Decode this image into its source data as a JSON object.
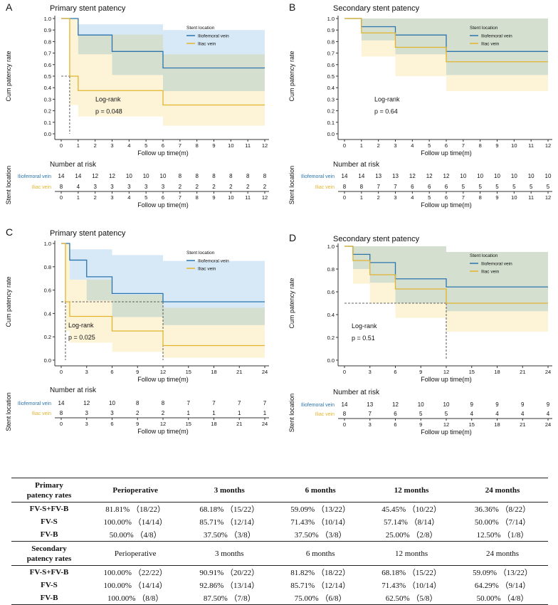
{
  "colors": {
    "iliofemoral": "#2b74ad",
    "iliac": "#e2b42d",
    "iliofemoral_band": "#d3e7f5",
    "iliac_band": "#fdf3d4",
    "overlap_band": "#e2e6d6",
    "axis": "#333333"
  },
  "chart_data": [
    {
      "id": "A",
      "type": "line",
      "step": true,
      "panel_letter": "A",
      "title": "Primary stent patency",
      "ylabel": "Cum patency rate",
      "xlabel": "Follow up time(m)",
      "xlim": [
        0,
        12
      ],
      "ylim": [
        0,
        1
      ],
      "x_ticks": [
        "0",
        "1",
        "2",
        "3",
        "4",
        "5",
        "6",
        "7",
        "8",
        "9",
        "10",
        "11",
        "12"
      ],
      "y_ticks": [
        "0.0",
        "0.1",
        "0.2",
        "0.3",
        "0.4",
        "0.5",
        "0.6",
        "0.7",
        "0.8",
        "0.9",
        "1.0"
      ],
      "y_tick_values": [
        0,
        0.1,
        0.2,
        0.3,
        0.4,
        0.5,
        0.6,
        0.7,
        0.8,
        0.9,
        1.0
      ],
      "legend": {
        "title": "Stent location",
        "placement": "top-right",
        "entries": [
          "Iliofemoral vein",
          "Iliac vein"
        ]
      },
      "annotation": {
        "lines": [
          "Log-rank",
          "p = 0.048"
        ],
        "placement": "center-left"
      },
      "median_lines": [
        {
          "x": 0.5,
          "y": 0.5
        }
      ],
      "series": [
        {
          "name": "Iliofemoral vein",
          "x": [
            0,
            1,
            3,
            6,
            12
          ],
          "y": [
            1.0,
            0.857,
            0.714,
            0.571,
            0.571
          ],
          "ci_lower": [
            1.0,
            0.69,
            0.51,
            0.37,
            0.37
          ],
          "ci_upper": [
            1.0,
            0.95,
            0.95,
            0.9,
            0.9
          ]
        },
        {
          "name": "Iliac vein",
          "x": [
            0,
            0.5,
            1,
            6,
            12
          ],
          "y": [
            1.0,
            0.5,
            0.375,
            0.25,
            0.25
          ],
          "ci_lower": [
            1.0,
            0.25,
            0.15,
            0.07,
            0.07
          ],
          "ci_upper": [
            1.0,
            1.0,
            0.86,
            0.69,
            0.69
          ]
        }
      ],
      "risk_table": {
        "title": "Number at risk",
        "ylabel": "Stent location",
        "xlabel": "Follow up time(m)",
        "times": [
          "0",
          "1",
          "2",
          "3",
          "4",
          "5",
          "6",
          "7",
          "8",
          "9",
          "10",
          "11",
          "12"
        ],
        "rows": [
          {
            "label": "Iliofemoral vein",
            "values": [
              "14",
              "14",
              "12",
              "12",
              "10",
              "10",
              "10",
              "8",
              "8",
              "8",
              "8",
              "8",
              "8"
            ]
          },
          {
            "label": "Iliac vein",
            "values": [
              "8",
              "4",
              "3",
              "3",
              "3",
              "3",
              "3",
              "2",
              "2",
              "2",
              "2",
              "2",
              "2"
            ]
          }
        ]
      }
    },
    {
      "id": "B",
      "type": "line",
      "step": true,
      "panel_letter": "B",
      "title": "Secondary stent patency",
      "ylabel": "Cum patency rate",
      "xlabel": "Follow up time(m)",
      "xlim": [
        0,
        12
      ],
      "ylim": [
        0,
        1
      ],
      "x_ticks": [
        "0",
        "1",
        "2",
        "3",
        "4",
        "5",
        "6",
        "7",
        "8",
        "9",
        "10",
        "11",
        "12"
      ],
      "y_ticks": [
        "0.0",
        "0.1",
        "0.2",
        "0.3",
        "0.4",
        "0.5",
        "0.6",
        "0.7",
        "0.8",
        "0.9",
        "1.0"
      ],
      "y_tick_values": [
        0,
        0.1,
        0.2,
        0.3,
        0.4,
        0.5,
        0.6,
        0.7,
        0.8,
        0.9,
        1.0
      ],
      "legend": {
        "title": "Stent location",
        "placement": "top-right",
        "entries": [
          "Iliofemoral vein",
          "Iliac vein"
        ]
      },
      "annotation": {
        "lines": [
          "Log-rank",
          "p = 0.64"
        ],
        "placement": "center-left"
      },
      "median_lines": [],
      "series": [
        {
          "name": "Iliofemoral vein",
          "x": [
            0,
            1,
            3,
            6,
            12
          ],
          "y": [
            1.0,
            0.929,
            0.857,
            0.714,
            0.714
          ],
          "ci_lower": [
            1.0,
            0.81,
            0.69,
            0.51,
            0.51
          ],
          "ci_upper": [
            1.0,
            1.0,
            1.0,
            1.0,
            1.0
          ]
        },
        {
          "name": "Iliac vein",
          "x": [
            0,
            1,
            3,
            6,
            12
          ],
          "y": [
            1.0,
            0.875,
            0.75,
            0.625,
            0.625
          ],
          "ci_lower": [
            1.0,
            0.67,
            0.5,
            0.37,
            0.37
          ],
          "ci_upper": [
            1.0,
            1.0,
            1.0,
            1.0,
            1.0
          ]
        }
      ],
      "risk_table": {
        "title": "Number at risk",
        "ylabel": "Stent location",
        "xlabel": "Follow up time(m)",
        "times": [
          "0",
          "1",
          "2",
          "3",
          "4",
          "5",
          "6",
          "7",
          "8",
          "9",
          "10",
          "11",
          "12"
        ],
        "rows": [
          {
            "label": "Iliofemoral vein",
            "values": [
              "14",
              "14",
              "13",
              "13",
              "12",
              "12",
              "12",
              "10",
              "10",
              "10",
              "10",
              "10",
              "10"
            ]
          },
          {
            "label": "Iliac vein",
            "values": [
              "8",
              "8",
              "7",
              "7",
              "6",
              "6",
              "6",
              "5",
              "5",
              "5",
              "5",
              "5",
              "5"
            ]
          }
        ]
      }
    },
    {
      "id": "C",
      "type": "line",
      "step": true,
      "panel_letter": "C",
      "title": "Primary stent patency",
      "ylabel": "Cum patency rate",
      "xlabel": "Follow up time(m)",
      "xlim": [
        0,
        24
      ],
      "ylim": [
        0,
        1
      ],
      "x_ticks": [
        "0",
        "3",
        "6",
        "9",
        "12",
        "15",
        "18",
        "21",
        "24"
      ],
      "y_ticks": [
        "0.0",
        "0.2",
        "0.4",
        "0.6",
        "0.8",
        "1.0"
      ],
      "y_tick_values": [
        0,
        0.2,
        0.4,
        0.6,
        0.8,
        1.0
      ],
      "legend": {
        "title": "Stent location",
        "placement": "top-right",
        "entries": [
          "Iliofemoral vein",
          "Iliac vein"
        ]
      },
      "annotation": {
        "lines": [
          "Log-rank",
          "p = 0.025"
        ],
        "placement": "center-left"
      },
      "median_lines": [
        {
          "x": 0.5,
          "y": 0.5
        },
        {
          "x": 12,
          "y": 0.5
        }
      ],
      "series": [
        {
          "name": "Iliofemoral vein",
          "x": [
            0,
            1,
            3,
            6,
            12,
            24
          ],
          "y": [
            1.0,
            0.857,
            0.714,
            0.571,
            0.5,
            0.5
          ],
          "ci_lower": [
            1.0,
            0.69,
            0.51,
            0.37,
            0.3,
            0.3
          ],
          "ci_upper": [
            1.0,
            0.95,
            0.95,
            0.9,
            0.85,
            0.85
          ]
        },
        {
          "name": "Iliac vein",
          "x": [
            0,
            0.5,
            1,
            6,
            12,
            24
          ],
          "y": [
            1.0,
            0.5,
            0.375,
            0.25,
            0.125,
            0.125
          ],
          "ci_lower": [
            1.0,
            0.25,
            0.15,
            0.07,
            0.02,
            0.02
          ],
          "ci_upper": [
            1.0,
            1.0,
            0.69,
            0.56,
            0.45,
            0.45
          ]
        }
      ],
      "risk_table": {
        "title": "Number at risk",
        "ylabel": "Stent location",
        "xlabel": "Follow up time(m)",
        "times": [
          "0",
          "3",
          "6",
          "9",
          "12",
          "15",
          "18",
          "21",
          "24"
        ],
        "rows": [
          {
            "label": "Iliofemoral vein",
            "values": [
              "14",
              "12",
              "10",
              "8",
              "8",
              "7",
              "7",
              "7",
              "7"
            ]
          },
          {
            "label": "Iliac vein",
            "values": [
              "8",
              "3",
              "3",
              "2",
              "2",
              "1",
              "1",
              "1",
              "1"
            ]
          }
        ]
      }
    },
    {
      "id": "D",
      "type": "line",
      "step": true,
      "panel_letter": "D",
      "title": "Secondary stent patency",
      "ylabel": "Cum patency rate",
      "xlabel": "Follow up time(m)",
      "xlim": [
        0,
        24
      ],
      "ylim": [
        0,
        1
      ],
      "x_ticks": [
        "0",
        "3",
        "6",
        "9",
        "12",
        "15",
        "18",
        "21",
        "24"
      ],
      "y_ticks": [
        "0.0",
        "0.2",
        "0.4",
        "0.6",
        "0.8",
        "1.0"
      ],
      "y_tick_values": [
        0,
        0.2,
        0.4,
        0.6,
        0.8,
        1.0
      ],
      "legend": {
        "title": "Stent location",
        "placement": "top-right",
        "entries": [
          "Iliofemoral vein",
          "Iliac vein"
        ]
      },
      "annotation": {
        "lines": [
          "Log-rank",
          "p = 0.51"
        ],
        "placement": "center-left"
      },
      "median_lines": [
        {
          "x": 12,
          "y": 0.5
        }
      ],
      "series": [
        {
          "name": "Iliofemoral vein",
          "x": [
            0,
            1,
            3,
            6,
            12,
            24
          ],
          "y": [
            1.0,
            0.929,
            0.857,
            0.714,
            0.643,
            0.643
          ],
          "ci_lower": [
            1.0,
            0.8,
            0.68,
            0.5,
            0.43,
            0.43
          ],
          "ci_upper": [
            1.0,
            1.0,
            1.0,
            1.0,
            0.95,
            0.95
          ]
        },
        {
          "name": "Iliac vein",
          "x": [
            0,
            1,
            3,
            6,
            12,
            24
          ],
          "y": [
            1.0,
            0.875,
            0.75,
            0.625,
            0.5,
            0.5
          ],
          "ci_lower": [
            1.0,
            0.67,
            0.5,
            0.37,
            0.25,
            0.25
          ],
          "ci_upper": [
            1.0,
            1.0,
            1.0,
            1.0,
            0.95,
            0.95
          ]
        }
      ],
      "risk_table": {
        "title": "Number at risk",
        "ylabel": "Stent location",
        "xlabel": "Follow up time(m)",
        "times": [
          "0",
          "3",
          "6",
          "9",
          "12",
          "15",
          "18",
          "21",
          "24"
        ],
        "rows": [
          {
            "label": "Iliofemoral vein",
            "values": [
              "14",
              "13",
              "12",
              "10",
              "10",
              "9",
              "9",
              "9",
              "9"
            ]
          },
          {
            "label": "Iliac vein",
            "values": [
              "8",
              "7",
              "6",
              "5",
              "5",
              "4",
              "4",
              "4",
              "4"
            ]
          }
        ]
      }
    }
  ],
  "table": {
    "primary": {
      "header": [
        "Primary",
        "patency rates"
      ],
      "columns": [
        "Perioperative",
        "3 months",
        "6 months",
        "12 months",
        "24 months"
      ],
      "rows": [
        {
          "label": "FV-S+FV-B",
          "cells": [
            "81.81% （18/22）",
            "68.18% （15/22）",
            "59.09% （13/22）",
            "45.45% （10/22）",
            "36.36% （8/22）"
          ]
        },
        {
          "label": "FV-S",
          "cells": [
            "100.00% （14/14）",
            "85.71% （12/14）",
            "71.43% （10/14）",
            "57.14% （8/14）",
            "50.00% （7/14）"
          ]
        },
        {
          "label": "FV-B",
          "cells": [
            "50.00% （4/8）",
            "37.50% （3/8）",
            "37.50% （3/8）",
            "25.00% （2/8）",
            "12.50% （1/8）"
          ]
        }
      ]
    },
    "secondary": {
      "header": [
        "Secondary",
        "patency rates"
      ],
      "columns": [
        "Perioperative",
        "3 months",
        "6 months",
        "12 months",
        "24 months"
      ],
      "rows": [
        {
          "label": "FV-S+FV-B",
          "cells": [
            "100.00% （22/22）",
            "90.91% （20/22）",
            "81.82% （18/22）",
            "68.18% （15/22）",
            "59.09% （13/22）"
          ]
        },
        {
          "label": "FV-S",
          "cells": [
            "100.00% （14/14）",
            "92.86% （13/14）",
            "85.71% （12/14）",
            "71.43% （10/14）",
            "64.29% （9/14）"
          ]
        },
        {
          "label": "FV-B",
          "cells": [
            "100.00% （8/8）",
            "87.50% （7/8）",
            "75.00% （6/8）",
            "62.50% （5/8）",
            "50.00% （4/8）"
          ]
        }
      ]
    }
  }
}
